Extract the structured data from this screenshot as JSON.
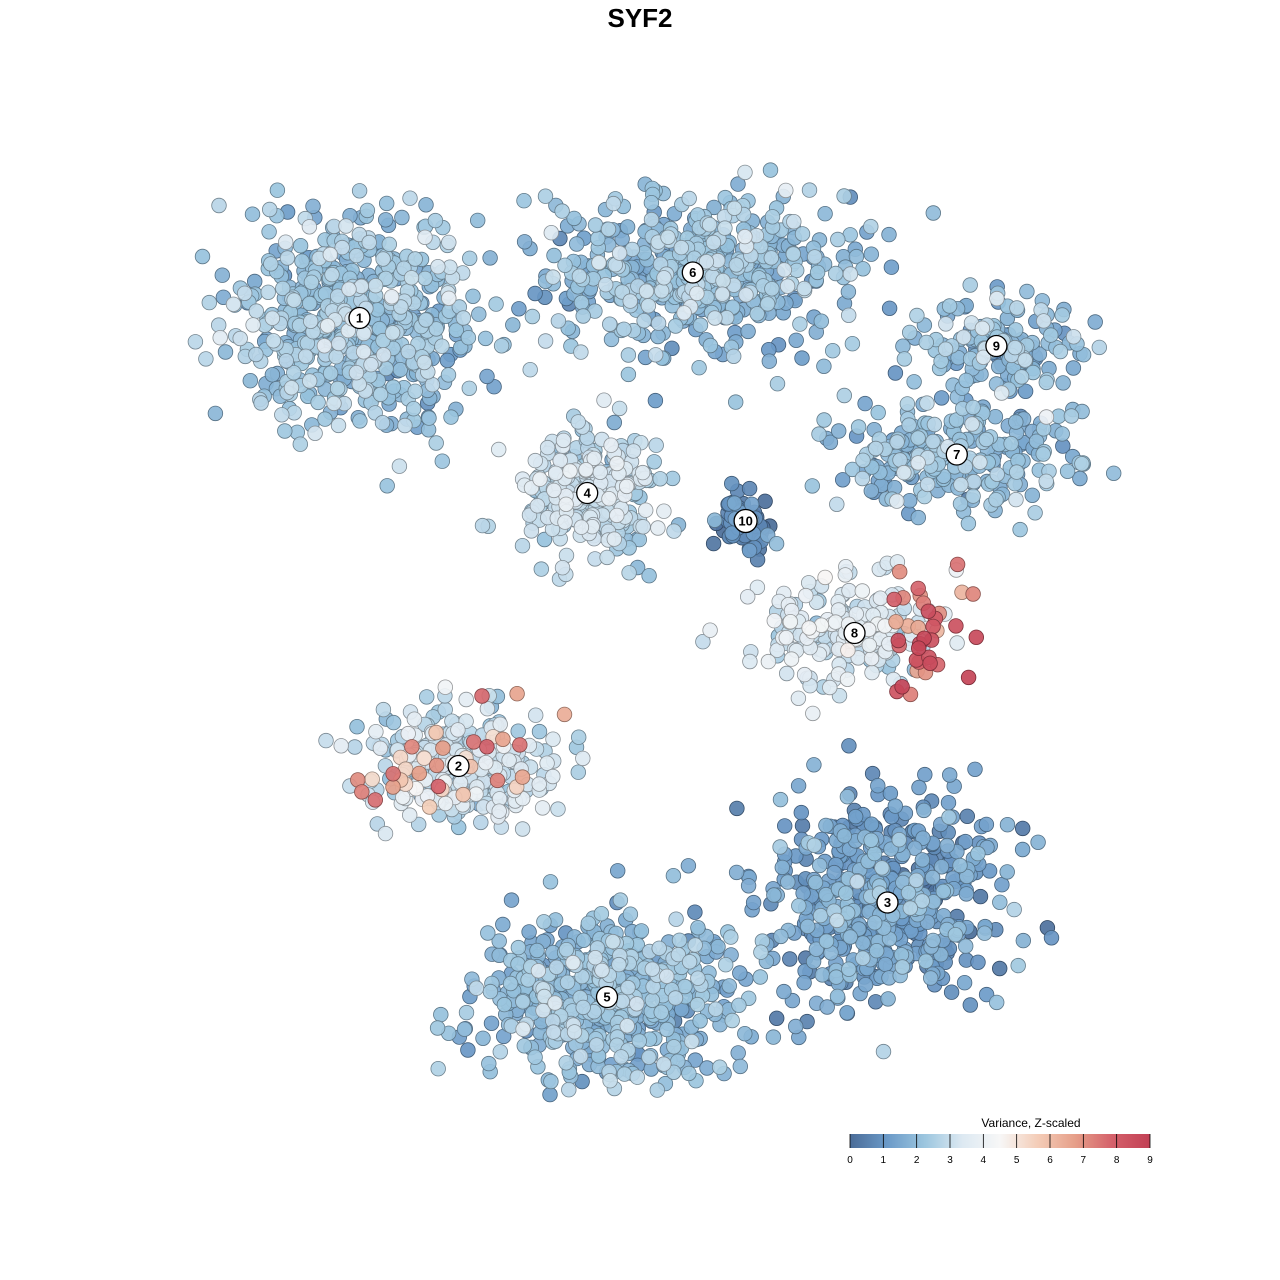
{
  "chart_data": {
    "type": "scatter",
    "title": "SYF2",
    "xlabel": "",
    "ylabel": "",
    "grid": false,
    "legend_position": "bottom-right",
    "colorbar": {
      "title": "Variance, Z-scaled",
      "min": 0,
      "max": 9,
      "ticks": [
        "0",
        "1",
        "2",
        "3",
        "4",
        "5",
        "6",
        "7",
        "8",
        "9"
      ],
      "colors": [
        "#4a6c98",
        "#6b9ac8",
        "#9cc6df",
        "#dde9f2",
        "#f7f7f7",
        "#f4cdb8",
        "#e69f89",
        "#d4606a",
        "#c24055"
      ]
    },
    "clusters": [
      {
        "label": "1",
        "x": -8.5,
        "y": 9.2,
        "spread": [
          3.2,
          3.0
        ],
        "base": 2.2,
        "n": 620
      },
      {
        "label": "6",
        "x": 1.6,
        "y": 10.5,
        "spread": [
          4.2,
          2.2
        ],
        "base": 2.1,
        "n": 560
      },
      {
        "label": "4",
        "x": -1.6,
        "y": 4.2,
        "spread": [
          1.8,
          1.7
        ],
        "base": 2.8,
        "n": 300
      },
      {
        "label": "10",
        "x": 3.2,
        "y": 3.4,
        "spread": [
          0.8,
          0.9
        ],
        "base": 0.6,
        "n": 70
      },
      {
        "label": "9",
        "x": 10.8,
        "y": 8.4,
        "spread": [
          2.4,
          1.3
        ],
        "base": 2.0,
        "n": 160
      },
      {
        "label": "7",
        "x": 9.6,
        "y": 5.3,
        "spread": [
          3.4,
          1.4
        ],
        "base": 2.0,
        "n": 260
      },
      {
        "label": "8",
        "x": 6.5,
        "y": 0.2,
        "spread": [
          2.8,
          1.5
        ],
        "base": 3.3,
        "n": 220
      },
      {
        "label": "2",
        "x": -5.5,
        "y": -3.6,
        "spread": [
          2.6,
          1.6
        ],
        "base": 3.0,
        "n": 300
      },
      {
        "label": "3",
        "x": 7.5,
        "y": -7.5,
        "spread": [
          3.2,
          2.6
        ],
        "base": 1.3,
        "n": 560
      },
      {
        "label": "5",
        "x": -1.0,
        "y": -10.2,
        "spread": [
          3.5,
          2.2
        ],
        "base": 1.9,
        "n": 640
      }
    ]
  }
}
